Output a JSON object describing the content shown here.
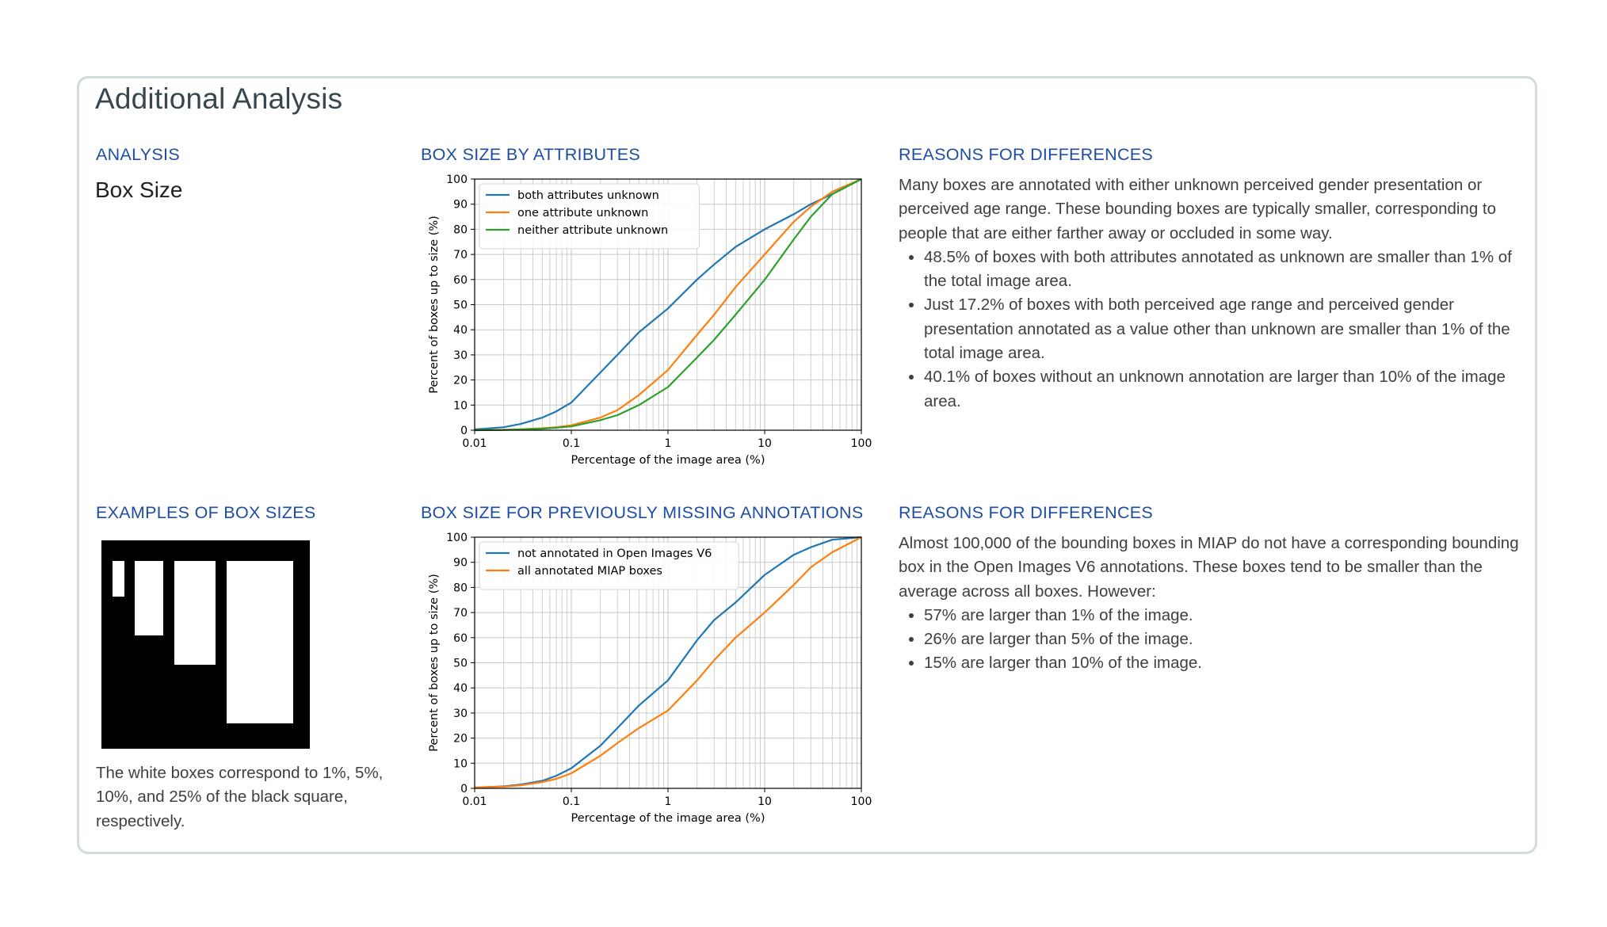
{
  "card": {
    "title": "Additional Analysis"
  },
  "left": {
    "analysis_heading": "ANALYSIS",
    "analysis_value": "Box Size",
    "examples_heading": "EXAMPLES OF BOX SIZES",
    "examples_caption": "The white boxes correspond to 1%, 5%, 10%, and 25% of the black square, respectively."
  },
  "middle": {
    "chart1_heading": "BOX SIZE BY ATTRIBUTES",
    "chart2_heading": "BOX SIZE FOR PREVIOUSLY MISSING ANNOTATIONS"
  },
  "right": {
    "reasons1_heading": "REASONS FOR DIFFERENCES",
    "reasons1_intro": "Many boxes are annotated with either unknown perceived gender presentation or perceived age range. These bounding boxes are typically smaller, corresponding to people that are either farther away or occluded in some way.",
    "reasons1_bullets": [
      "48.5% of boxes with both attributes annotated as unknown are smaller than 1% of the total image area.",
      "Just 17.2% of boxes with both perceived age range and perceived gender presentation annotated as a value other than unknown are smaller than 1% of the total image area.",
      "40.1% of boxes without an unknown annotation are larger than 10% of the image area."
    ],
    "reasons2_heading": "REASONS FOR DIFFERENCES",
    "reasons2_intro": "Almost 100,000 of the bounding boxes in MIAP do not have a corresponding bounding box in the Open Images V6 annotations. These boxes tend to be smaller than the average across all boxes. However:",
    "reasons2_bullets": [
      "57% are larger than 1% of the image.",
      "26% are larger than 5% of the image.",
      "15% are larger than 10% of the image."
    ]
  },
  "chart_data": [
    {
      "type": "line",
      "xlabel": "Percentage of the image area (%)",
      "ylabel": "Percent of boxes up to size (%)",
      "xscale": "log",
      "xlim": [
        0.01,
        100
      ],
      "ylim": [
        0,
        100
      ],
      "xticks": [
        "0.01",
        "0.1",
        "1",
        "10",
        "100"
      ],
      "yticks": [
        "0",
        "10",
        "20",
        "30",
        "40",
        "50",
        "60",
        "70",
        "80",
        "90",
        "100"
      ],
      "grid": true,
      "legend_position": "top-left",
      "series": [
        {
          "name": "both attributes unknown",
          "color": "#1f77b4",
          "x": [
            0.01,
            0.02,
            0.03,
            0.05,
            0.07,
            0.1,
            0.2,
            0.3,
            0.5,
            1,
            2,
            3,
            5,
            10,
            20,
            30,
            50,
            100
          ],
          "y": [
            0.3,
            1.2,
            2.5,
            5,
            7.5,
            11,
            23,
            30,
            39,
            48.5,
            60,
            66,
            73,
            80,
            86,
            90,
            94,
            100
          ]
        },
        {
          "name": "one attribute unknown",
          "color": "#ff7f0e",
          "x": [
            0.01,
            0.02,
            0.03,
            0.05,
            0.07,
            0.1,
            0.2,
            0.3,
            0.5,
            1,
            2,
            3,
            5,
            10,
            20,
            30,
            50,
            100
          ],
          "y": [
            0,
            0.2,
            0.4,
            0.8,
            1.2,
            2,
            5,
            8,
            14,
            24,
            38,
            46,
            57,
            70,
            83,
            89,
            95,
            100
          ]
        },
        {
          "name": "neither attribute unknown",
          "color": "#2ca02c",
          "x": [
            0.01,
            0.02,
            0.03,
            0.05,
            0.07,
            0.1,
            0.2,
            0.3,
            0.5,
            1,
            2,
            3,
            5,
            10,
            20,
            30,
            50,
            100
          ],
          "y": [
            0,
            0.1,
            0.3,
            0.6,
            1,
            1.5,
            4,
            6,
            10,
            17.2,
            29,
            36,
            46,
            59.9,
            76,
            85,
            94,
            100
          ]
        }
      ]
    },
    {
      "type": "line",
      "xlabel": "Percentage of the image area (%)",
      "ylabel": "Percent of boxes up to size (%)",
      "xscale": "log",
      "xlim": [
        0.01,
        100
      ],
      "ylim": [
        0,
        100
      ],
      "xticks": [
        "0.01",
        "0.1",
        "1",
        "10",
        "100"
      ],
      "yticks": [
        "0",
        "10",
        "20",
        "30",
        "40",
        "50",
        "60",
        "70",
        "80",
        "90",
        "100"
      ],
      "grid": true,
      "legend_position": "top-left",
      "series": [
        {
          "name": "not annotated in Open Images V6",
          "color": "#1f77b4",
          "x": [
            0.01,
            0.02,
            0.03,
            0.05,
            0.07,
            0.1,
            0.2,
            0.3,
            0.5,
            1,
            2,
            3,
            5,
            10,
            20,
            30,
            50,
            100
          ],
          "y": [
            0.3,
            0.8,
            1.5,
            3,
            5,
            8,
            17,
            24,
            33,
            43,
            59,
            67,
            74,
            85,
            93,
            96,
            99,
            100
          ]
        },
        {
          "name": "all annotated MIAP boxes",
          "color": "#ff7f0e",
          "x": [
            0.01,
            0.02,
            0.03,
            0.05,
            0.07,
            0.1,
            0.2,
            0.3,
            0.5,
            1,
            2,
            3,
            5,
            10,
            20,
            30,
            50,
            100
          ],
          "y": [
            0.3,
            0.7,
            1.2,
            2.5,
            3.8,
            6,
            13,
            18,
            24,
            31,
            43,
            51,
            60,
            70,
            81,
            88,
            94,
            100
          ]
        }
      ]
    }
  ]
}
